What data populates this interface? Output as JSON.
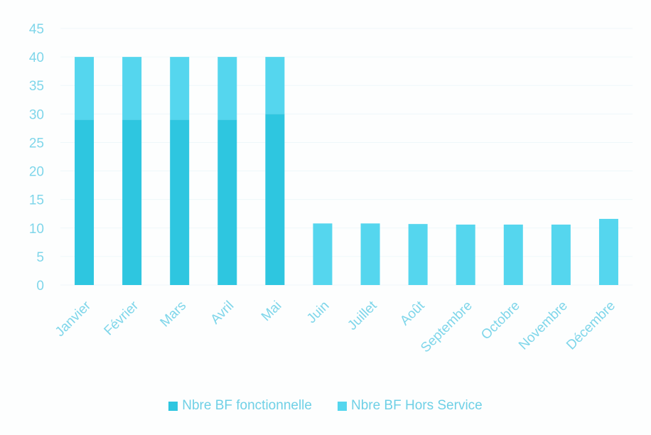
{
  "chart_data": {
    "type": "bar",
    "stacked": true,
    "categories": [
      "Janvier",
      "Février",
      "Mars",
      "Avril",
      "Mai",
      "Juin",
      "Juillet",
      "Août",
      "Septembre",
      "Octobre",
      "Novembre",
      "Décembre"
    ],
    "series": [
      {
        "name": "Nbre BF fonctionnelle",
        "color": "#2ec6e0",
        "values": [
          29,
          29,
          29,
          29,
          30,
          0,
          0,
          0,
          0,
          0,
          0,
          0
        ]
      },
      {
        "name": "Nbre BF Hors Service",
        "color": "#55d6ee",
        "values": [
          11,
          11,
          11,
          11,
          10,
          10.8,
          10.8,
          10.7,
          10.6,
          10.6,
          10.6,
          11.6
        ]
      }
    ],
    "title": "",
    "xlabel": "",
    "ylabel": "",
    "ylim": [
      0,
      45
    ],
    "yticks": [
      0,
      5,
      10,
      15,
      20,
      25,
      30,
      35,
      40,
      45
    ],
    "grid": true,
    "legend_position": "bottom"
  }
}
